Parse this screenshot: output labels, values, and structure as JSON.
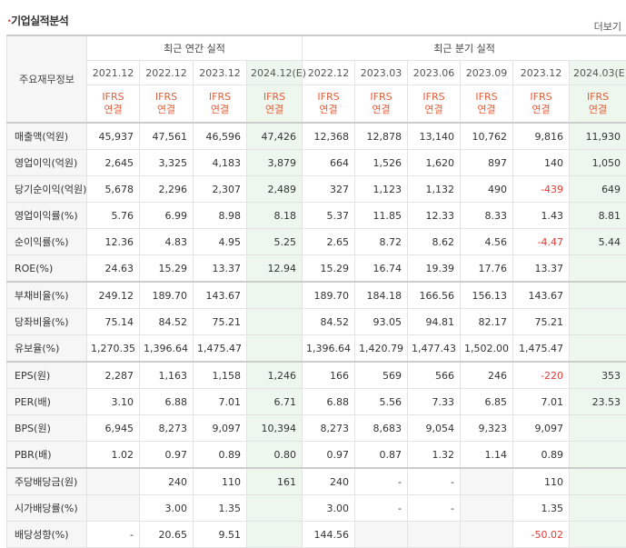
{
  "title": "기업실적분석",
  "more_label": "더보기",
  "corner_label": "주요재무정보",
  "annual_label": "최근 연간 실적",
  "quarter_label": "최근 분기 실적",
  "periods": [
    "2021.12",
    "2022.12",
    "2023.12",
    "2024.12(E)",
    "2022.12",
    "2023.03",
    "2023.06",
    "2023.09",
    "2023.12",
    "2024.03(E)"
  ],
  "ifrs_line1": "IFRS",
  "ifrs_line2": "연결",
  "rows": [
    {
      "label": "매출액(억원)",
      "values": [
        "45,937",
        "47,561",
        "46,596",
        "47,426",
        "12,368",
        "12,878",
        "13,140",
        "10,762",
        "9,816",
        "11,930"
      ]
    },
    {
      "label": "영업이익(억원)",
      "values": [
        "2,645",
        "3,325",
        "4,183",
        "3,879",
        "664",
        "1,526",
        "1,620",
        "897",
        "140",
        "1,050"
      ]
    },
    {
      "label": "당기순이익(억원)",
      "values": [
        "5,678",
        "2,296",
        "2,307",
        "2,489",
        "327",
        "1,123",
        "1,132",
        "490",
        "-439",
        "649"
      ]
    },
    {
      "label": "영업이익률(%)",
      "values": [
        "5.76",
        "6.99",
        "8.98",
        "8.18",
        "5.37",
        "11.85",
        "12.33",
        "8.33",
        "1.43",
        "8.81"
      ]
    },
    {
      "label": "순이익률(%)",
      "values": [
        "12.36",
        "4.83",
        "4.95",
        "5.25",
        "2.65",
        "8.72",
        "8.62",
        "4.56",
        "-4.47",
        "5.44"
      ]
    },
    {
      "label": "ROE(%)",
      "values": [
        "24.63",
        "15.29",
        "13.37",
        "12.94",
        "15.29",
        "16.74",
        "19.39",
        "17.76",
        "13.37",
        ""
      ]
    },
    {
      "label": "부채비율(%)",
      "values": [
        "249.12",
        "189.70",
        "143.67",
        "",
        "189.70",
        "184.18",
        "166.56",
        "156.13",
        "143.67",
        ""
      ]
    },
    {
      "label": "당좌비율(%)",
      "values": [
        "75.14",
        "84.52",
        "75.21",
        "",
        "84.52",
        "93.05",
        "94.81",
        "82.17",
        "75.21",
        ""
      ]
    },
    {
      "label": "유보율(%)",
      "values": [
        "1,270.35",
        "1,396.64",
        "1,475.47",
        "",
        "1,396.64",
        "1,420.79",
        "1,477.43",
        "1,502.00",
        "1,475.47",
        ""
      ]
    },
    {
      "label": "EPS(원)",
      "values": [
        "2,287",
        "1,163",
        "1,158",
        "1,246",
        "166",
        "569",
        "566",
        "246",
        "-220",
        "353"
      ]
    },
    {
      "label": "PER(배)",
      "values": [
        "3.10",
        "6.88",
        "7.01",
        "6.71",
        "6.88",
        "5.56",
        "7.33",
        "6.85",
        "7.01",
        "23.53"
      ]
    },
    {
      "label": "BPS(원)",
      "values": [
        "6,945",
        "8,273",
        "9,097",
        "10,394",
        "8,273",
        "8,683",
        "9,054",
        "9,323",
        "9,097",
        ""
      ]
    },
    {
      "label": "PBR(배)",
      "values": [
        "1.02",
        "0.97",
        "0.89",
        "0.80",
        "0.97",
        "0.87",
        "1.32",
        "1.14",
        "0.89",
        ""
      ]
    },
    {
      "label": "주당배당금(원)",
      "values": [
        "",
        "240",
        "110",
        "161",
        "240",
        "-",
        "-",
        "",
        "110",
        ""
      ]
    },
    {
      "label": "시가배당률(%)",
      "values": [
        "",
        "3.00",
        "1.35",
        "",
        "3.00",
        "-",
        "-",
        "",
        "1.35",
        ""
      ]
    },
    {
      "label": "배당성향(%)",
      "values": [
        "-",
        "20.65",
        "9.51",
        "",
        "144.56",
        "",
        "",
        "",
        "-50.02",
        ""
      ]
    }
  ]
}
